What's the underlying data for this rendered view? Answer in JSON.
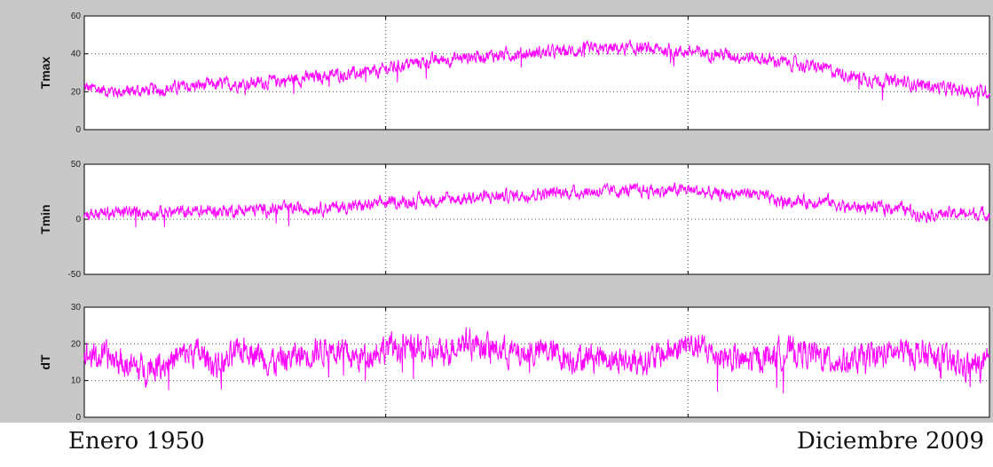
{
  "captions": {
    "start": "Enero 1950",
    "end": "Diciembre 2009"
  },
  "colors": {
    "series": "#ff00ff",
    "figure_background": "#c8c8c8",
    "axes_background": "#ffffff",
    "grid": "#555555"
  },
  "chart_data": [
    {
      "type": "line",
      "ylabel": "Tmax",
      "ylim": [
        0,
        60
      ],
      "yticks": [
        "0",
        "20",
        "40",
        "60"
      ],
      "grid": true,
      "grid_style": "dotted",
      "x_gridlines_at_fraction": [
        0.333,
        0.667
      ],
      "x_range": [
        "Enero 1950",
        "Diciembre 2009"
      ],
      "series": [
        {
          "color": "#ff00ff",
          "points_x_fraction": [
            0.0,
            0.04,
            0.08,
            0.12,
            0.16,
            0.2,
            0.24,
            0.28,
            0.32,
            0.333,
            0.36,
            0.4,
            0.44,
            0.48,
            0.52,
            0.56,
            0.6,
            0.64,
            0.667,
            0.7,
            0.74,
            0.78,
            0.82,
            0.85,
            0.88,
            0.92,
            0.96,
            1.0
          ],
          "values": [
            22,
            20,
            21,
            23,
            24,
            25,
            27,
            29,
            30,
            32,
            35,
            37,
            39,
            40,
            41,
            42,
            43,
            42,
            41,
            40,
            38,
            35,
            32,
            28,
            26,
            24,
            21,
            20
          ]
        }
      ]
    },
    {
      "type": "line",
      "ylabel": "Tmin",
      "ylim": [
        -50,
        50
      ],
      "yticks": [
        "-50",
        "0",
        "50"
      ],
      "grid": true,
      "grid_style": "dotted",
      "x_gridlines_at_fraction": [
        0.333,
        0.667
      ],
      "x_range": [
        "Enero 1950",
        "Diciembre 2009"
      ],
      "series": [
        {
          "color": "#ff00ff",
          "points_x_fraction": [
            0.0,
            0.04,
            0.08,
            0.12,
            0.16,
            0.2,
            0.24,
            0.28,
            0.32,
            0.333,
            0.36,
            0.4,
            0.44,
            0.48,
            0.52,
            0.56,
            0.6,
            0.64,
            0.667,
            0.7,
            0.72,
            0.74,
            0.76,
            0.8,
            0.82,
            0.84,
            0.88,
            0.9,
            0.92,
            0.96,
            1.0
          ],
          "values": [
            5,
            6,
            6,
            7,
            8,
            9,
            10,
            11,
            13,
            15,
            16,
            18,
            20,
            22,
            24,
            25,
            26,
            26,
            27,
            22,
            24,
            24,
            17,
            16,
            17,
            11,
            11,
            11,
            5,
            5,
            5
          ]
        }
      ]
    },
    {
      "type": "line",
      "ylabel": "dT",
      "ylim": [
        0,
        30
      ],
      "yticks": [
        "0",
        "10",
        "20",
        "30"
      ],
      "grid": true,
      "grid_style": "dotted",
      "x_gridlines_at_fraction": [
        0.333,
        0.667
      ],
      "x_range": [
        "Enero 1950",
        "Diciembre 2009"
      ],
      "series": [
        {
          "color": "#ff00ff",
          "points_x_fraction": [
            0.0,
            0.03,
            0.06,
            0.09,
            0.12,
            0.15,
            0.18,
            0.21,
            0.24,
            0.27,
            0.3,
            0.333,
            0.36,
            0.39,
            0.42,
            0.45,
            0.48,
            0.51,
            0.54,
            0.57,
            0.6,
            0.63,
            0.667,
            0.7,
            0.73,
            0.76,
            0.79,
            0.82,
            0.85,
            0.88,
            0.91,
            0.94,
            0.97,
            1.0
          ],
          "values": [
            17,
            16,
            13,
            15,
            18,
            14,
            19,
            15,
            17,
            19,
            16,
            19,
            19,
            17,
            21,
            19,
            17,
            18,
            16,
            17,
            15,
            16,
            20,
            17,
            15,
            17,
            18,
            16,
            15,
            17,
            18,
            16,
            14,
            14
          ]
        }
      ]
    }
  ]
}
